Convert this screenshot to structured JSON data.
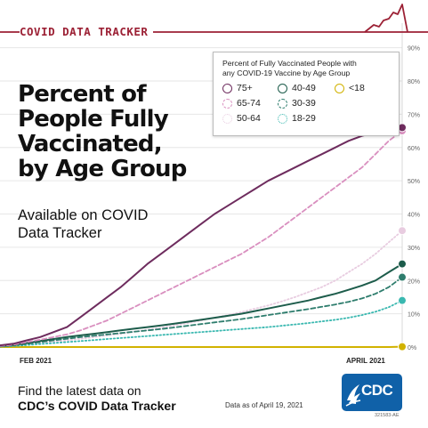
{
  "header": {
    "title": "COVID DATA TRACKER"
  },
  "headline": {
    "lines": [
      "Percent of",
      "People Fully",
      "Vaccinated,",
      "by Age Group"
    ]
  },
  "subhead": {
    "lines": [
      "Available on COVID",
      "Data Tracker"
    ]
  },
  "legend": {
    "title_lines": [
      "Percent of Fully Vaccinated People with",
      "any COVID-19 Vaccine by Age Group"
    ]
  },
  "footer": {
    "line1": "Find the latest data on",
    "line2": "CDC’s COVID Data Tracker",
    "data_as_of": "Data as of April 19, 2021",
    "logo_text": "CDC",
    "id_code": "321583-AE"
  },
  "colors": {
    "brand_red": "#9c2135",
    "cdc_blue": "#1061a8",
    "grid": "#e6e6e6"
  },
  "chart_data": {
    "type": "line",
    "title": "Percent of People Fully Vaccinated, by Age Group",
    "xlabel": "",
    "ylabel": "",
    "x_tick_labels": [
      "FEB 2021",
      "APRIL 2021"
    ],
    "y_ticks": [
      "0%",
      "10%",
      "20%",
      "30%",
      "40%",
      "50%",
      "60%",
      "70%",
      "80%",
      "90%"
    ],
    "ylim": [
      0,
      95
    ],
    "grid": true,
    "legend_position": "top-right",
    "series": [
      {
        "name": "75+",
        "color": "#6e2c5e",
        "style": "solid",
        "marker": "circle-open",
        "values": [
          0.5,
          1,
          2,
          3,
          4.5,
          6,
          9,
          12,
          15,
          18,
          21.5,
          25,
          28,
          31,
          34,
          37,
          40,
          42.5,
          45,
          47.5,
          50,
          52,
          54,
          56,
          58,
          60,
          62,
          63.5,
          64.5,
          65.5,
          66
        ]
      },
      {
        "name": "65-74",
        "color": "#d98fbf",
        "style": "dashed",
        "marker": "circle-open",
        "values": [
          0.3,
          0.7,
          1.5,
          2.2,
          3,
          3.8,
          5,
          6.5,
          8,
          10,
          12,
          14,
          16,
          18,
          20,
          22,
          24,
          26,
          28,
          30.5,
          33,
          36,
          39,
          42,
          45,
          48,
          51,
          54,
          58,
          62,
          65
        ]
      },
      {
        "name": "50-64",
        "color": "#e8cce0",
        "style": "dotted",
        "marker": "circle-open",
        "values": [
          0.2,
          0.4,
          0.8,
          1.2,
          1.6,
          2,
          2.5,
          3,
          3.5,
          4,
          4.6,
          5.2,
          5.8,
          6.5,
          7.2,
          8,
          8.8,
          9.6,
          10.5,
          11.5,
          12.5,
          13.7,
          15,
          16.5,
          18,
          20,
          22.5,
          25,
          28,
          31.5,
          35
        ]
      },
      {
        "name": "40-49",
        "color": "#1d5c4b",
        "style": "solid",
        "marker": "circle-open",
        "values": [
          0.3,
          0.6,
          1.2,
          1.8,
          2.4,
          3,
          3.5,
          4,
          4.5,
          5,
          5.5,
          6,
          6.5,
          7,
          7.6,
          8.2,
          8.8,
          9.4,
          10,
          10.8,
          11.6,
          12.4,
          13.2,
          14,
          15,
          16,
          17.2,
          18.5,
          20,
          22.5,
          25
        ]
      },
      {
        "name": "30-39",
        "color": "#2e7d6d",
        "style": "dashed",
        "marker": "circle-open",
        "values": [
          0.2,
          0.5,
          1,
          1.5,
          2,
          2.5,
          3,
          3.4,
          3.8,
          4.2,
          4.6,
          5,
          5.4,
          5.9,
          6.4,
          6.9,
          7.4,
          7.9,
          8.4,
          9,
          9.6,
          10.2,
          10.8,
          11.4,
          12.1,
          12.8,
          13.6,
          14.6,
          16,
          18,
          21
        ]
      },
      {
        "name": "18-29",
        "color": "#3ab8b0",
        "style": "dotted",
        "marker": "circle-open",
        "values": [
          0.1,
          0.3,
          0.6,
          0.9,
          1.2,
          1.5,
          1.8,
          2.1,
          2.4,
          2.7,
          3,
          3.3,
          3.6,
          3.9,
          4.2,
          4.5,
          4.8,
          5.1,
          5.4,
          5.7,
          6,
          6.4,
          6.8,
          7.2,
          7.7,
          8.2,
          8.8,
          9.6,
          10.6,
          12,
          14
        ]
      },
      {
        "name": "<18",
        "color": "#d1b200",
        "style": "solid",
        "marker": "circle-open",
        "values": [
          0,
          0,
          0,
          0,
          0,
          0,
          0,
          0,
          0,
          0,
          0,
          0,
          0,
          0,
          0,
          0,
          0,
          0,
          0,
          0,
          0,
          0,
          0,
          0,
          0,
          0,
          0,
          0,
          0,
          0,
          0.1
        ]
      }
    ]
  }
}
